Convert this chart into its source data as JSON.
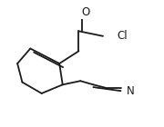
{
  "bg_color": "#ffffff",
  "line_color": "#1a1a1a",
  "line_width": 1.3,
  "font_size_atoms": 8.5,
  "atoms": {
    "O": [
      0.52,
      0.91
    ],
    "Cl": [
      0.75,
      0.72
    ],
    "N": [
      0.8,
      0.28
    ]
  },
  "single_bonds": [
    {
      "from": [
        0.18,
        0.62
      ],
      "to": [
        0.1,
        0.5
      ]
    },
    {
      "from": [
        0.1,
        0.5
      ],
      "to": [
        0.13,
        0.35
      ]
    },
    {
      "from": [
        0.13,
        0.35
      ],
      "to": [
        0.25,
        0.26
      ]
    },
    {
      "from": [
        0.25,
        0.26
      ],
      "to": [
        0.38,
        0.33
      ]
    },
    {
      "from": [
        0.38,
        0.33
      ],
      "to": [
        0.36,
        0.5
      ]
    },
    {
      "from": [
        0.36,
        0.5
      ],
      "to": [
        0.18,
        0.62
      ]
    },
    {
      "from": [
        0.36,
        0.5
      ],
      "to": [
        0.48,
        0.6
      ]
    },
    {
      "from": [
        0.48,
        0.6
      ],
      "to": [
        0.48,
        0.76
      ]
    },
    {
      "from": [
        0.48,
        0.76
      ],
      "to": [
        0.63,
        0.72
      ]
    },
    {
      "from": [
        0.38,
        0.33
      ],
      "to": [
        0.49,
        0.36
      ]
    },
    {
      "from": [
        0.49,
        0.36
      ],
      "to": [
        0.57,
        0.33
      ]
    },
    {
      "from": [
        0.57,
        0.33
      ],
      "to": [
        0.66,
        0.3
      ]
    },
    {
      "from": [
        0.66,
        0.3
      ],
      "to": [
        0.74,
        0.3
      ]
    }
  ],
  "double_bond_pairs": [
    {
      "p1": [
        0.18,
        0.62
      ],
      "p2": [
        0.36,
        0.5
      ],
      "perp": [
        0.022,
        0.03
      ]
    },
    {
      "p1": [
        0.48,
        0.76
      ],
      "p2": [
        0.48,
        0.92
      ],
      "perp": [
        0.02,
        0.0
      ]
    },
    {
      "p1": [
        0.57,
        0.33
      ],
      "p2": [
        0.74,
        0.3
      ],
      "perp": [
        0.0,
        0.02
      ]
    }
  ]
}
